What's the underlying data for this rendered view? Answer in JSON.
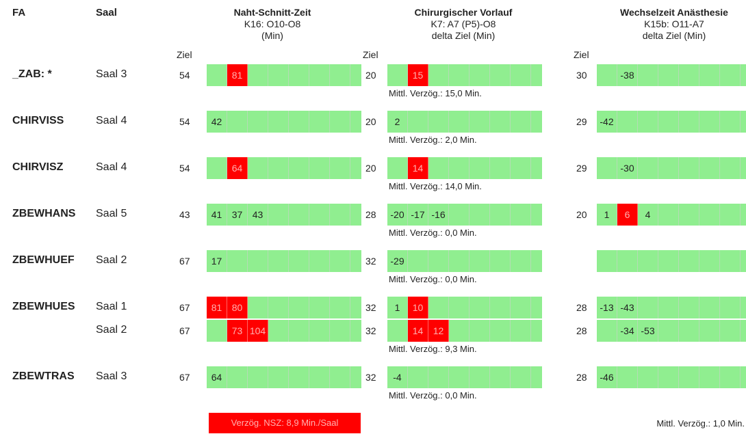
{
  "header": {
    "fa": "FA",
    "saal": "Saal",
    "ziel": "Ziel",
    "groups": [
      {
        "title": "Naht-Schnitt-Zeit",
        "lines": [
          "K16: O10-O8",
          "(Min)"
        ]
      },
      {
        "title": "Chirurgischer Vorlauf",
        "lines": [
          "K7: A7 (P5)-O8",
          "delta Ziel (Min)"
        ]
      },
      {
        "title": "Wechselzeit Anästhesie",
        "lines": [
          "K15b: O11-A7",
          "delta Ziel (Min)"
        ]
      }
    ]
  },
  "rows": [
    {
      "fa": "_ZAB: *",
      "saal": "Saal 3",
      "ziel": [
        54,
        20,
        30
      ],
      "cells": [
        [
          null,
          81
        ],
        [
          null,
          15
        ],
        [
          null,
          -38
        ]
      ],
      "alerts": [
        [
          1
        ],
        [
          1
        ],
        []
      ],
      "mittl": "Mittl. Verzög.: 15,0 Min."
    },
    {
      "fa": "CHIRVISS",
      "saal": "Saal 4",
      "ziel": [
        54,
        20,
        29
      ],
      "cells": [
        [
          42
        ],
        [
          2
        ],
        [
          -42
        ]
      ],
      "alerts": [
        [],
        [],
        []
      ],
      "mittl": "Mittl. Verzög.: 2,0 Min."
    },
    {
      "fa": "CHIRVISZ",
      "saal": "Saal 4",
      "ziel": [
        54,
        20,
        29
      ],
      "cells": [
        [
          null,
          64
        ],
        [
          null,
          14
        ],
        [
          null,
          -30
        ]
      ],
      "alerts": [
        [
          1
        ],
        [
          1
        ],
        []
      ],
      "mittl": "Mittl. Verzög.: 14,0 Min."
    },
    {
      "fa": "ZBEWHANS",
      "saal": "Saal 5",
      "ziel": [
        43,
        28,
        20
      ],
      "cells": [
        [
          41,
          37,
          43
        ],
        [
          -20,
          -17,
          -16
        ],
        [
          1,
          6,
          4
        ]
      ],
      "alerts": [
        [],
        [],
        [
          1
        ]
      ],
      "mittl": "Mittl. Verzög.: 0,0 Min."
    },
    {
      "fa": "ZBEWHUEF",
      "saal": "Saal 2",
      "ziel": [
        67,
        32,
        null
      ],
      "cells": [
        [
          17
        ],
        [
          -29
        ],
        []
      ],
      "alerts": [
        [],
        [],
        []
      ],
      "mittl": "Mittl. Verzög.: 0,0 Min."
    },
    {
      "fa": "ZBEWHUES",
      "saal": "Saal 1",
      "ziel": [
        67,
        32,
        28
      ],
      "cells": [
        [
          81,
          80
        ],
        [
          1,
          10
        ],
        [
          -13,
          -43
        ]
      ],
      "alerts": [
        [
          0,
          1
        ],
        [
          1
        ],
        []
      ]
    },
    {
      "saal": "Saal 2",
      "ziel": [
        67,
        32,
        28
      ],
      "cells": [
        [
          null,
          73,
          104
        ],
        [
          null,
          14,
          12
        ],
        [
          null,
          -34,
          -53
        ]
      ],
      "alerts": [
        [
          1,
          2
        ],
        [
          1,
          2
        ],
        []
      ],
      "mittl": "Mittl. Verzög.: 9,3 Min."
    },
    {
      "fa": "ZBEWTRAS",
      "saal": "Saal 3",
      "ziel": [
        67,
        32,
        28
      ],
      "cells": [
        [
          64
        ],
        [
          -4
        ],
        [
          -46
        ]
      ],
      "alerts": [
        [],
        [],
        []
      ],
      "mittl": "Mittl. Verzög.: 0,0 Min."
    }
  ],
  "footer": {
    "nsz": "Verzög. NSZ: 8,9 Min./Saal",
    "total": "Mittl. Verzög.: 1,0 Min."
  }
}
